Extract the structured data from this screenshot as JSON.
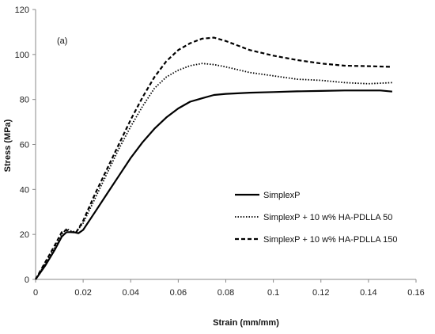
{
  "chart_data": {
    "type": "line",
    "panel_label": "(a)",
    "xlabel": "Strain (mm/mm)",
    "ylabel": "Stress (MPa)",
    "xlim": [
      0,
      0.16
    ],
    "ylim": [
      0,
      120
    ],
    "x_ticks": [
      "0",
      "0.02",
      "0.04",
      "0.06",
      "0.08",
      "0.1",
      "0.12",
      "0.14",
      "0.16"
    ],
    "y_ticks": [
      "0",
      "20",
      "40",
      "60",
      "80",
      "100",
      "120"
    ],
    "grid": false,
    "legend_position": "right",
    "series": [
      {
        "name": "SimplexP",
        "style": "solid",
        "color": "#000000",
        "points": [
          [
            0,
            0
          ],
          [
            0.004,
            6
          ],
          [
            0.008,
            13
          ],
          [
            0.011,
            19
          ],
          [
            0.013,
            21
          ],
          [
            0.016,
            21
          ],
          [
            0.018,
            20.5
          ],
          [
            0.02,
            22
          ],
          [
            0.025,
            30
          ],
          [
            0.03,
            38
          ],
          [
            0.035,
            46
          ],
          [
            0.04,
            54
          ],
          [
            0.045,
            61
          ],
          [
            0.05,
            67
          ],
          [
            0.055,
            72
          ],
          [
            0.06,
            76
          ],
          [
            0.065,
            79
          ],
          [
            0.07,
            80.5
          ],
          [
            0.075,
            82
          ],
          [
            0.08,
            82.5
          ],
          [
            0.09,
            83
          ],
          [
            0.1,
            83.3
          ],
          [
            0.11,
            83.6
          ],
          [
            0.12,
            83.8
          ],
          [
            0.13,
            84
          ],
          [
            0.14,
            84
          ],
          [
            0.145,
            84
          ],
          [
            0.15,
            83.5
          ]
        ]
      },
      {
        "name": "SimplexP + 10 w% HA-PDLLA 50",
        "style": "dotted",
        "color": "#000000",
        "points": [
          [
            0,
            0
          ],
          [
            0.004,
            7
          ],
          [
            0.008,
            14
          ],
          [
            0.011,
            20
          ],
          [
            0.013,
            22.5
          ],
          [
            0.015,
            21.5
          ],
          [
            0.017,
            21
          ],
          [
            0.02,
            25
          ],
          [
            0.025,
            36
          ],
          [
            0.03,
            47
          ],
          [
            0.035,
            58
          ],
          [
            0.04,
            68
          ],
          [
            0.045,
            77
          ],
          [
            0.05,
            85
          ],
          [
            0.055,
            90
          ],
          [
            0.06,
            93
          ],
          [
            0.065,
            95
          ],
          [
            0.07,
            96
          ],
          [
            0.075,
            95.5
          ],
          [
            0.08,
            94.5
          ],
          [
            0.09,
            92
          ],
          [
            0.1,
            90.5
          ],
          [
            0.11,
            89
          ],
          [
            0.12,
            88.5
          ],
          [
            0.13,
            87.5
          ],
          [
            0.14,
            87
          ],
          [
            0.15,
            87.5
          ]
        ]
      },
      {
        "name": "SimplexP + 10 w% HA-PDLLA 150",
        "style": "dashed",
        "color": "#000000",
        "points": [
          [
            0,
            0
          ],
          [
            0.004,
            7.5
          ],
          [
            0.008,
            15
          ],
          [
            0.011,
            21
          ],
          [
            0.013,
            22
          ],
          [
            0.015,
            21
          ],
          [
            0.017,
            20.8
          ],
          [
            0.02,
            26
          ],
          [
            0.025,
            38
          ],
          [
            0.03,
            49
          ],
          [
            0.035,
            60
          ],
          [
            0.04,
            71
          ],
          [
            0.045,
            81
          ],
          [
            0.05,
            90
          ],
          [
            0.055,
            97
          ],
          [
            0.06,
            102
          ],
          [
            0.065,
            105
          ],
          [
            0.07,
            107
          ],
          [
            0.075,
            107.5
          ],
          [
            0.08,
            106
          ],
          [
            0.085,
            104
          ],
          [
            0.09,
            102
          ],
          [
            0.1,
            99.5
          ],
          [
            0.11,
            97.5
          ],
          [
            0.12,
            96
          ],
          [
            0.13,
            95
          ],
          [
            0.14,
            94.8
          ],
          [
            0.15,
            94.5
          ]
        ]
      }
    ]
  }
}
